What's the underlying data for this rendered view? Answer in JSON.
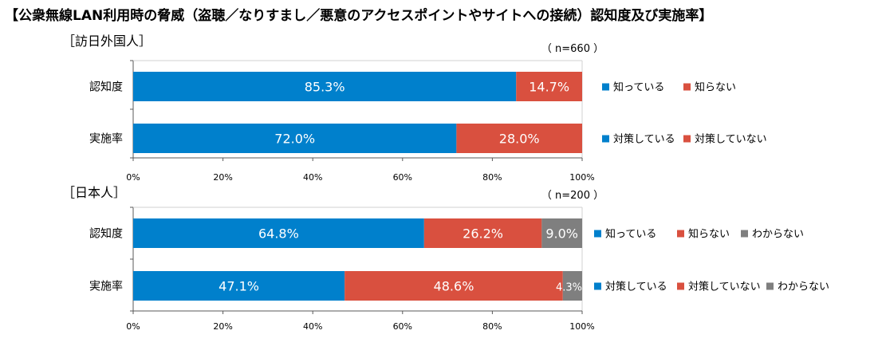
{
  "title": "【公衆無線LAN利用時の脅威（盗聴／なりすまし／悪意のアクセスポイントやサイトへの接続）認知度及び実施率】",
  "colors": {
    "blue": "#0080cc",
    "red": "#d9503f",
    "gray": "#7f7f7f"
  },
  "chart_data": [
    {
      "type": "bar",
      "orientation": "horizontal",
      "stacked": "100%",
      "subtitle": "［訪日外国人］",
      "n_label": "（ n=660 ）",
      "categories": [
        "認知度",
        "実施率"
      ],
      "x_ticks": [
        "0%",
        "20%",
        "40%",
        "60%",
        "80%",
        "100%"
      ],
      "xlim": [
        0,
        100
      ],
      "rows": [
        {
          "label": "認知度",
          "segments": [
            {
              "name": "知っている",
              "value": 85.3,
              "text": "85.3%",
              "color": "blue"
            },
            {
              "name": "知らない",
              "value": 14.7,
              "text": "14.7%",
              "color": "red"
            }
          ]
        },
        {
          "label": "実施率",
          "segments": [
            {
              "name": "対策している",
              "value": 72.0,
              "text": "72.0%",
              "color": "blue"
            },
            {
              "name": "対策していない",
              "value": 28.0,
              "text": "28.0%",
              "color": "red"
            }
          ]
        }
      ]
    },
    {
      "type": "bar",
      "orientation": "horizontal",
      "stacked": "100%",
      "subtitle": "［日本人］",
      "n_label": "（ n=200 ）",
      "categories": [
        "認知度",
        "実施率"
      ],
      "x_ticks": [
        "0%",
        "20%",
        "40%",
        "60%",
        "80%",
        "100%"
      ],
      "xlim": [
        0,
        100
      ],
      "rows": [
        {
          "label": "認知度",
          "segments": [
            {
              "name": "知っている",
              "value": 64.8,
              "text": "64.8%",
              "color": "blue"
            },
            {
              "name": "知らない",
              "value": 26.2,
              "text": "26.2%",
              "color": "red"
            },
            {
              "name": "わからない",
              "value": 9.0,
              "text": "9.0%",
              "color": "gray"
            }
          ]
        },
        {
          "label": "実施率",
          "segments": [
            {
              "name": "対策している",
              "value": 47.1,
              "text": "47.1%",
              "color": "blue"
            },
            {
              "name": "対策していない",
              "value": 48.6,
              "text": "48.6%",
              "color": "red"
            },
            {
              "name": "わからない",
              "value": 4.3,
              "text": "4.3%",
              "color": "gray"
            }
          ]
        }
      ]
    }
  ]
}
